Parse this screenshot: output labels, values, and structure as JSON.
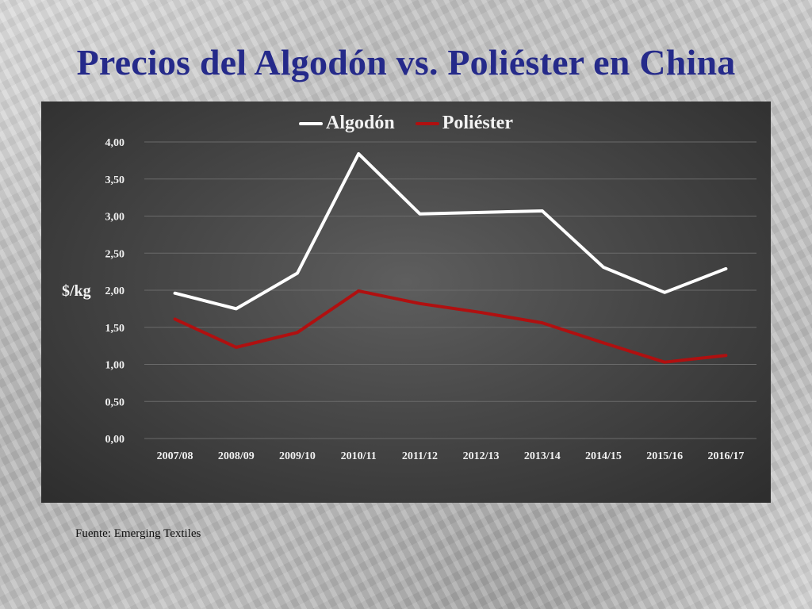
{
  "slide": {
    "title": "Precios del Algodón vs. Poliéster en China",
    "source": "Fuente: Emerging Textiles"
  },
  "colors": {
    "title": "#252a8a",
    "panel": "#474747",
    "algodon": "#ffffff",
    "poliester": "#b01010",
    "grid": "#6a6a6a"
  },
  "chart_data": {
    "type": "line",
    "title": "",
    "xlabel": "",
    "ylabel": "$/kg",
    "categories": [
      "2007/08",
      "2008/09",
      "2009/10",
      "2010/11",
      "2011/12",
      "2012/13",
      "2013/14",
      "2014/15",
      "2015/16",
      "2016/17"
    ],
    "series": [
      {
        "name": "Algodón",
        "color": "#ffffff",
        "values": [
          1.96,
          1.75,
          2.23,
          3.84,
          3.03,
          3.05,
          3.07,
          2.31,
          1.97,
          2.29
        ]
      },
      {
        "name": "Poliéster",
        "color": "#b01010",
        "values": [
          1.61,
          1.23,
          1.43,
          1.99,
          1.82,
          1.7,
          1.56,
          1.29,
          1.03,
          1.12
        ]
      }
    ],
    "ylim": [
      0,
      4
    ],
    "yticks": [
      "0,00",
      "0,50",
      "1,00",
      "1,50",
      "2,00",
      "2,50",
      "3,00",
      "3,50",
      "4,00"
    ],
    "legend_position": "top-center",
    "grid": true
  }
}
